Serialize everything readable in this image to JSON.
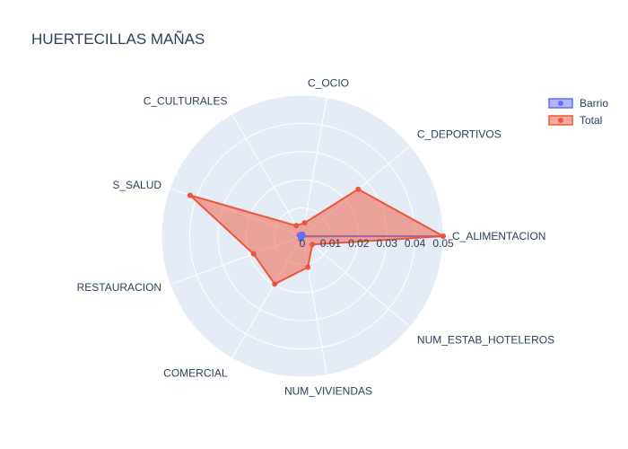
{
  "chart_data": {
    "type": "radar",
    "title": "HUERTECILLAS MAÑAS",
    "categories": [
      "C_ALIMENTACION",
      "C_DEPORTIVOS",
      "C_OCIO",
      "C_CULTURALES",
      "S_SALUD",
      "RESTAURACION",
      "COMERCIAL",
      "NUM_VIVIENDAS",
      "NUM_ESTAB_HOTELEROS"
    ],
    "radial_ticks": [
      "0",
      "0.01",
      "0.02",
      "0.03",
      "0.04",
      "0.05"
    ],
    "radial_range": [
      0,
      0.05
    ],
    "legend_position": "top-right",
    "series": [
      {
        "name": "Barrio",
        "color": "#636efa",
        "fill": "toself",
        "values": [
          0.05,
          0.0,
          0.0007,
          0.0008,
          0.0012,
          0.0007,
          0.0012,
          0.0002,
          0.0001
        ]
      },
      {
        "name": "Total",
        "color": "#ef553b",
        "fill": "toself",
        "values": [
          0.05,
          0.0259,
          0.0048,
          0.0043,
          0.0424,
          0.0184,
          0.0196,
          0.0112,
          0.0046
        ]
      }
    ]
  }
}
